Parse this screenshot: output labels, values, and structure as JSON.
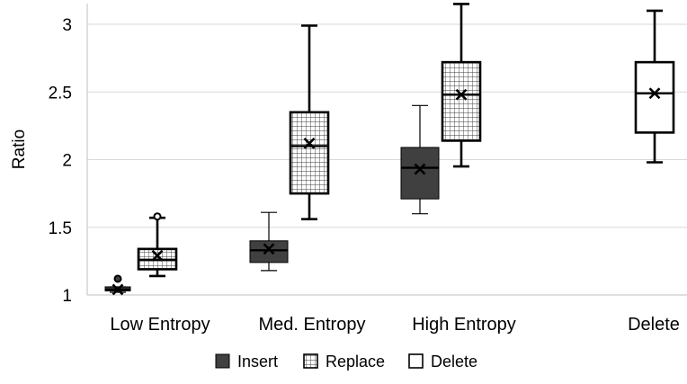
{
  "chart_data": {
    "type": "boxplot",
    "ylabel": "Ratio",
    "ylim": [
      1,
      3.15
    ],
    "yticks": [
      "1",
      "1.5",
      "2",
      "2.5",
      "3"
    ],
    "categories": [
      "Low Entropy",
      "Med. Entropy",
      "High Entropy",
      "Delete"
    ],
    "legend_position": "bottom",
    "grid": true,
    "series": [
      {
        "name": "Insert",
        "fill": "#404040",
        "pattern": "solid",
        "boxes": [
          {
            "category": "Low Entropy",
            "min": 1.02,
            "q1": 1.03,
            "median": 1.04,
            "q3": 1.06,
            "max": 1.06,
            "mean": 1.04,
            "outliers": [
              1.12
            ]
          },
          {
            "category": "Med. Entropy",
            "min": 1.18,
            "q1": 1.24,
            "median": 1.33,
            "q3": 1.4,
            "max": 1.61,
            "mean": 1.34,
            "outliers": []
          },
          {
            "category": "High Entropy",
            "min": 1.6,
            "q1": 1.71,
            "median": 1.94,
            "q3": 2.09,
            "max": 2.4,
            "mean": 1.93,
            "outliers": []
          }
        ]
      },
      {
        "name": "Replace",
        "fill": "#ffffff",
        "pattern": "grid",
        "boxes": [
          {
            "category": "Low Entropy",
            "min": 1.14,
            "q1": 1.19,
            "median": 1.26,
            "q3": 1.34,
            "max": 1.57,
            "mean": 1.29,
            "outliers": [
              1.58
            ]
          },
          {
            "category": "Med. Entropy",
            "min": 1.56,
            "q1": 1.75,
            "median": 2.1,
            "q3": 2.35,
            "max": 2.99,
            "mean": 2.12,
            "outliers": []
          },
          {
            "category": "High Entropy",
            "min": 1.95,
            "q1": 2.14,
            "median": 2.48,
            "q3": 2.72,
            "max": 3.15,
            "mean": 2.48,
            "outliers": []
          }
        ]
      },
      {
        "name": "Delete",
        "fill": "#ffffff",
        "pattern": "none",
        "boxes": [
          {
            "category": "Delete",
            "min": 1.98,
            "q1": 2.2,
            "median": 2.49,
            "q3": 2.72,
            "max": 3.1,
            "mean": 2.49,
            "outliers": []
          }
        ]
      }
    ]
  }
}
